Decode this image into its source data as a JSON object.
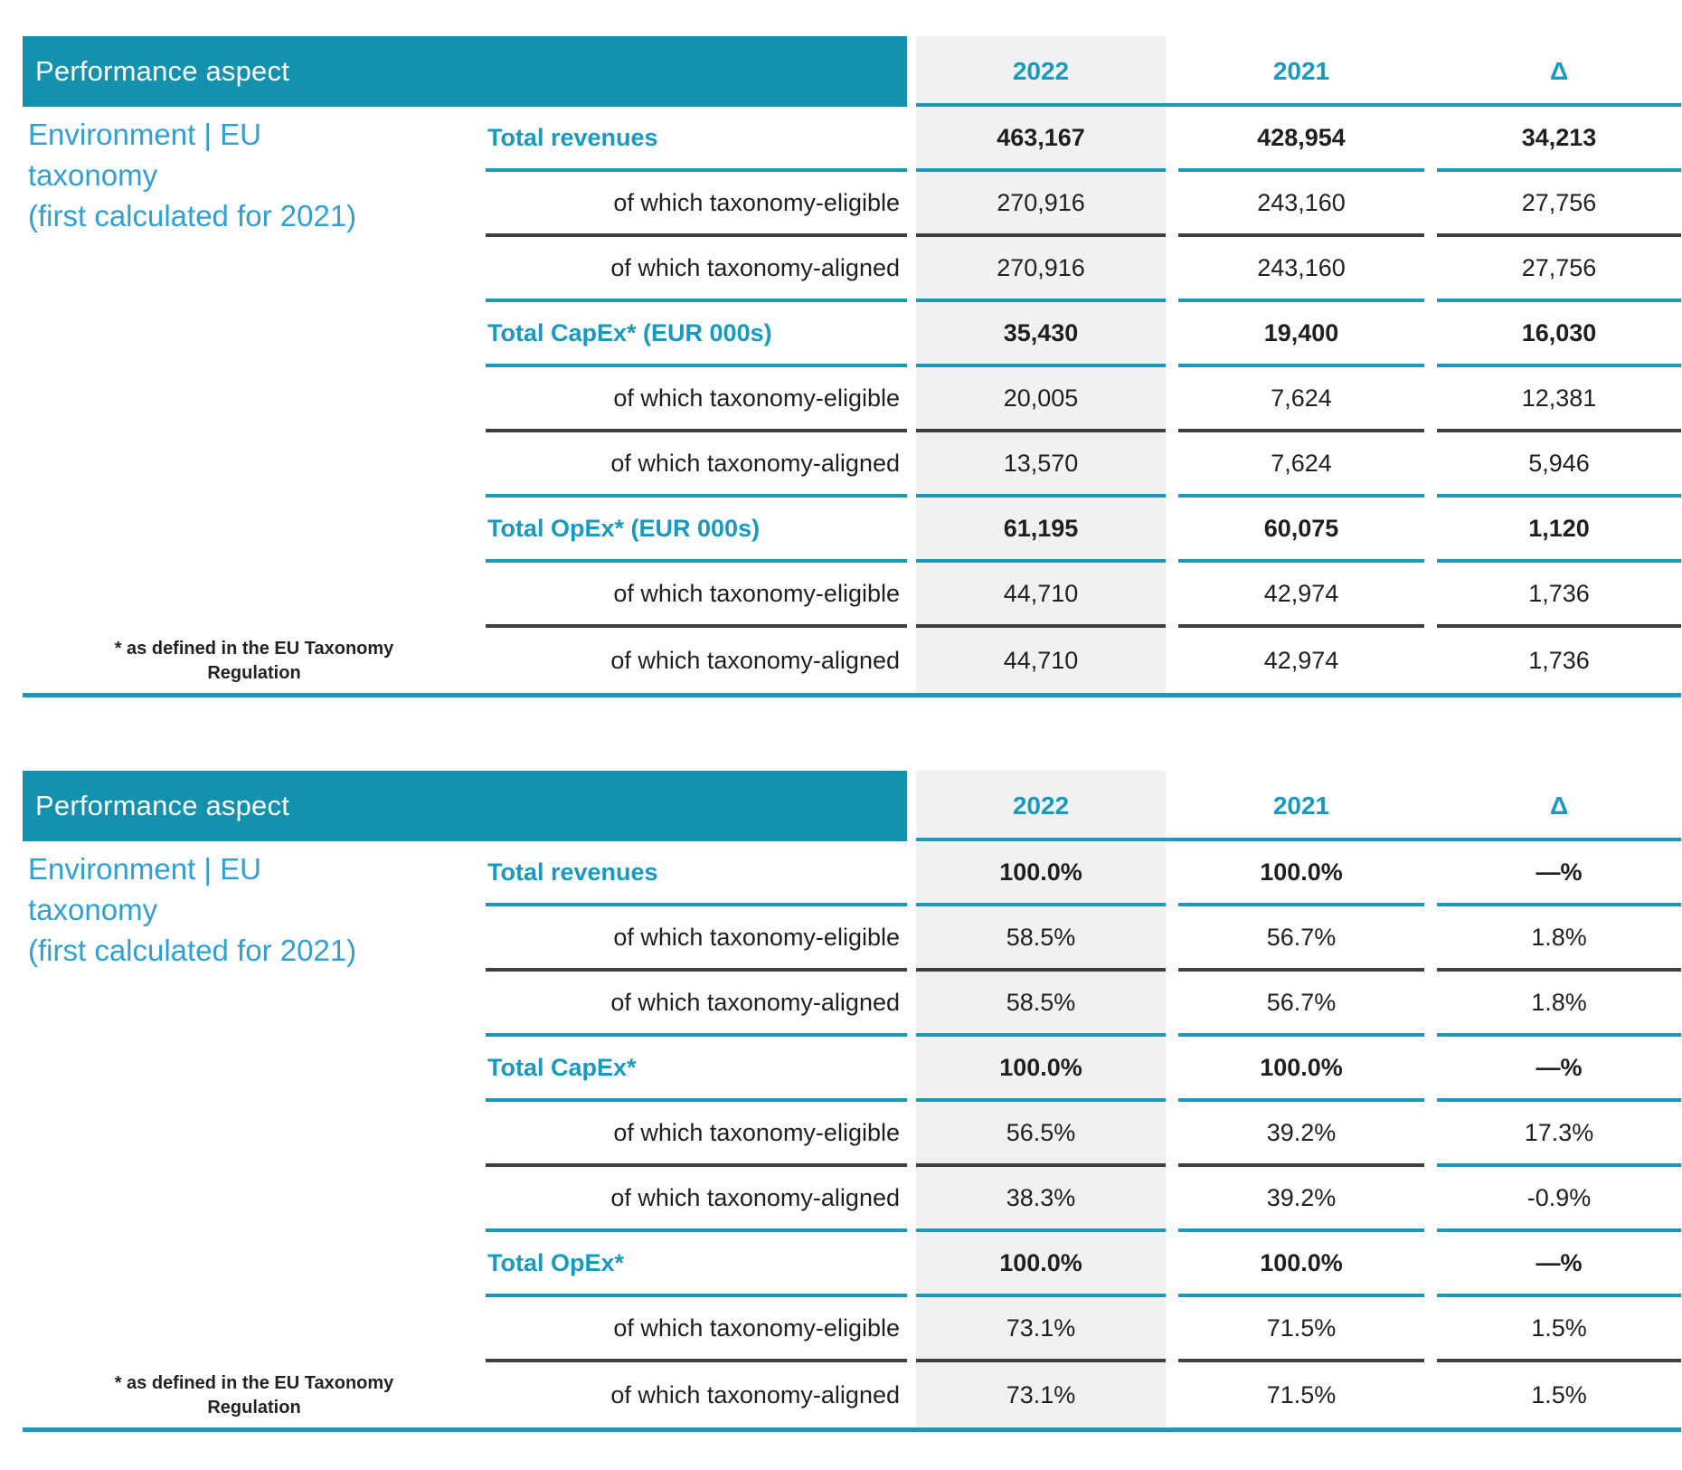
{
  "colors": {
    "header_bg": "#1391ad",
    "teal_rule": "#1a9ab8",
    "dark_rule": "#3f3f3f",
    "teal_text": "#1899c0",
    "side_heading_blue": "#2fa0d2",
    "value_text": "#1f1f1f",
    "column_2022_bg": "#f1f1f1"
  },
  "tables": [
    {
      "header_label": "Performance aspect",
      "side_heading_lines": [
        "Environment | EU",
        "taxonomy",
        "(first calculated for 2021)"
      ],
      "columns": [
        "2022",
        "2021",
        "Δ"
      ],
      "rows": [
        {
          "label": "Total revenues",
          "values": [
            "463,167",
            "428,954",
            "34,213"
          ]
        },
        {
          "label": "of which taxonomy-eligible",
          "values": [
            "270,916",
            "243,160",
            "27,756"
          ]
        },
        {
          "label": "of which taxonomy-aligned",
          "values": [
            "270,916",
            "243,160",
            "27,756"
          ]
        },
        {
          "label": "Total CapEx* (EUR 000s)",
          "values": [
            "35,430",
            "19,400",
            "16,030"
          ]
        },
        {
          "label": "of which taxonomy-eligible",
          "values": [
            "20,005",
            "7,624",
            "12,381"
          ]
        },
        {
          "label": "of which taxonomy-aligned",
          "values": [
            "13,570",
            "7,624",
            "5,946"
          ]
        },
        {
          "label": "Total OpEx* (EUR 000s)",
          "values": [
            "61,195",
            "60,075",
            "1,120"
          ]
        },
        {
          "label": "of which taxonomy-eligible",
          "values": [
            "44,710",
            "42,974",
            "1,736"
          ]
        },
        {
          "label": "of which taxonomy-aligned",
          "values": [
            "44,710",
            "42,974",
            "1,736"
          ]
        }
      ],
      "footnote_lines": [
        "* as defined in the EU Taxonomy",
        "Regulation"
      ]
    },
    {
      "header_label": "Performance aspect",
      "side_heading_lines": [
        "Environment | EU",
        "taxonomy",
        "(first calculated for 2021)"
      ],
      "columns": [
        "2022",
        "2021",
        "Δ"
      ],
      "rows": [
        {
          "label": "Total revenues",
          "values": [
            "100.0%",
            "100.0%",
            "—%"
          ]
        },
        {
          "label": "of which taxonomy-eligible",
          "values": [
            "58.5%",
            "56.7%",
            "1.8%"
          ]
        },
        {
          "label": "of which taxonomy-aligned",
          "values": [
            "58.5%",
            "56.7%",
            "1.8%"
          ]
        },
        {
          "label": "Total CapEx*",
          "values": [
            "100.0%",
            "100.0%",
            "—%"
          ]
        },
        {
          "label": "of which taxonomy-eligible",
          "values": [
            "56.5%",
            "39.2%",
            "17.3%"
          ]
        },
        {
          "label": "of which taxonomy-aligned",
          "values": [
            "38.3%",
            "39.2%",
            "-0.9%"
          ]
        },
        {
          "label": "Total OpEx*",
          "values": [
            "100.0%",
            "100.0%",
            "—%"
          ]
        },
        {
          "label": "of which taxonomy-eligible",
          "values": [
            "73.1%",
            "71.5%",
            "1.5%"
          ]
        },
        {
          "label": "of which taxonomy-aligned",
          "values": [
            "73.1%",
            "71.5%",
            "1.5%"
          ]
        }
      ],
      "footnote_lines": [
        "* as defined in the EU Taxonomy",
        "Regulation"
      ]
    }
  ]
}
